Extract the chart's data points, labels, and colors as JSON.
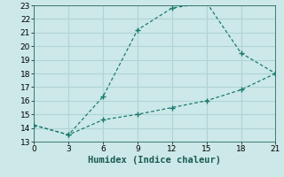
{
  "xlabel": "Humidex (Indice chaleur)",
  "bg_color": "#cce8e8",
  "grid_color": "#b0d4d4",
  "line_color": "#1a7a6e",
  "upper_x": [
    0,
    3,
    6,
    9,
    12,
    15,
    18,
    21
  ],
  "upper_y": [
    14.2,
    13.5,
    16.3,
    21.2,
    22.8,
    23.2,
    19.5,
    18.0
  ],
  "lower_x": [
    0,
    3,
    6,
    9,
    12,
    15,
    18,
    21
  ],
  "lower_y": [
    14.2,
    13.5,
    14.6,
    15.0,
    15.5,
    16.0,
    16.8,
    18.0
  ],
  "xlim": [
    0,
    21
  ],
  "ylim": [
    13,
    23
  ],
  "xticks": [
    0,
    3,
    6,
    9,
    12,
    15,
    18,
    21
  ],
  "yticks": [
    13,
    14,
    15,
    16,
    17,
    18,
    19,
    20,
    21,
    22,
    23
  ],
  "tick_fontsize": 6.5,
  "label_fontsize": 7.5
}
